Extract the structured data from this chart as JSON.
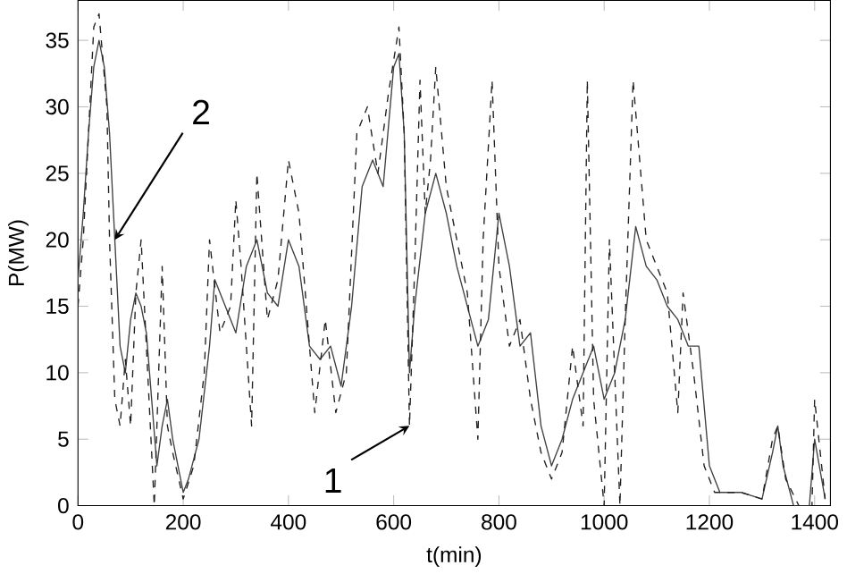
{
  "chart_data": {
    "type": "line",
    "xlabel": "t(min)",
    "ylabel": "P(MW)",
    "xlim": [
      0,
      1430
    ],
    "ylim": [
      0,
      38
    ],
    "xticks": [
      0,
      200,
      400,
      600,
      800,
      1000,
      1200,
      1400
    ],
    "yticks": [
      0,
      5,
      10,
      15,
      20,
      25,
      30,
      35
    ],
    "grid": false,
    "series": [
      {
        "color": "#404040",
        "line_style": "solid",
        "x": [
          0,
          10,
          20,
          30,
          40,
          50,
          60,
          70,
          80,
          90,
          100,
          110,
          120,
          130,
          140,
          150,
          160,
          170,
          180,
          200,
          210,
          230,
          250,
          260,
          280,
          300,
          320,
          340,
          360,
          380,
          400,
          420,
          440,
          460,
          480,
          500,
          520,
          540,
          560,
          580,
          600,
          610,
          620,
          630,
          640,
          660,
          680,
          700,
          720,
          740,
          760,
          780,
          800,
          820,
          840,
          860,
          880,
          900,
          920,
          940,
          960,
          980,
          1000,
          1020,
          1040,
          1060,
          1080,
          1100,
          1120,
          1140,
          1160,
          1180,
          1200,
          1220,
          1260,
          1300,
          1320,
          1330,
          1340,
          1360,
          1390,
          1400,
          1420
        ],
        "values": [
          17,
          22,
          28,
          33,
          35,
          33,
          28,
          20,
          12,
          10,
          14,
          16,
          15,
          13,
          8,
          3,
          6,
          8,
          5,
          1,
          2,
          5,
          12,
          17,
          15,
          13,
          18,
          20,
          16,
          15,
          20,
          18,
          12,
          11,
          12,
          9,
          15,
          24,
          26,
          24,
          33,
          34,
          28,
          10,
          15,
          22,
          25,
          22,
          18,
          15,
          12,
          14,
          22,
          18,
          12,
          13,
          6,
          3,
          5,
          8,
          10,
          12,
          8,
          10,
          14,
          21,
          18,
          17,
          15,
          14,
          12,
          12,
          3,
          1,
          1,
          0.5,
          4,
          6,
          3,
          0,
          0,
          5,
          0.5
        ]
      },
      {
        "color": "#202020",
        "line_style": "dashed",
        "x": [
          0,
          10,
          30,
          40,
          55,
          60,
          70,
          80,
          90,
          100,
          110,
          120,
          130,
          145,
          160,
          170,
          180,
          200,
          220,
          240,
          250,
          270,
          290,
          300,
          310,
          330,
          340,
          360,
          380,
          400,
          420,
          440,
          450,
          470,
          490,
          510,
          530,
          550,
          570,
          590,
          610,
          620,
          630,
          640,
          650,
          660,
          670,
          680,
          700,
          720,
          740,
          760,
          770,
          787,
          800,
          820,
          840,
          860,
          880,
          900,
          920,
          940,
          960,
          968,
          980,
          1000,
          1010,
          1030,
          1040,
          1055,
          1080,
          1100,
          1120,
          1140,
          1150,
          1170,
          1190,
          1210,
          1260,
          1300,
          1320,
          1330,
          1345,
          1370,
          1395,
          1400,
          1420
        ],
        "values": [
          15,
          20,
          36,
          37,
          30,
          20,
          8,
          6,
          11,
          6,
          16,
          20,
          12,
          0,
          18,
          6,
          4,
          0.5,
          3,
          10,
          20,
          13,
          15,
          23,
          18,
          6,
          25,
          14,
          17,
          26,
          22,
          12,
          7,
          14,
          7,
          10,
          28,
          30,
          25,
          31,
          36,
          28,
          6,
          18,
          32,
          22,
          26,
          33,
          24,
          20,
          16,
          5,
          20,
          32,
          18,
          12,
          14,
          8,
          4,
          2,
          4,
          12,
          6,
          32,
          8,
          0,
          20,
          0,
          14,
          32,
          20,
          18,
          16,
          7,
          16,
          10,
          3,
          1,
          1,
          0.5,
          5,
          6,
          2,
          0,
          0,
          8,
          0.5
        ]
      }
    ],
    "annotations": [
      {
        "text": "1",
        "x": 630,
        "y": 6
      },
      {
        "text": "2",
        "x": 70,
        "y": 20
      }
    ]
  }
}
